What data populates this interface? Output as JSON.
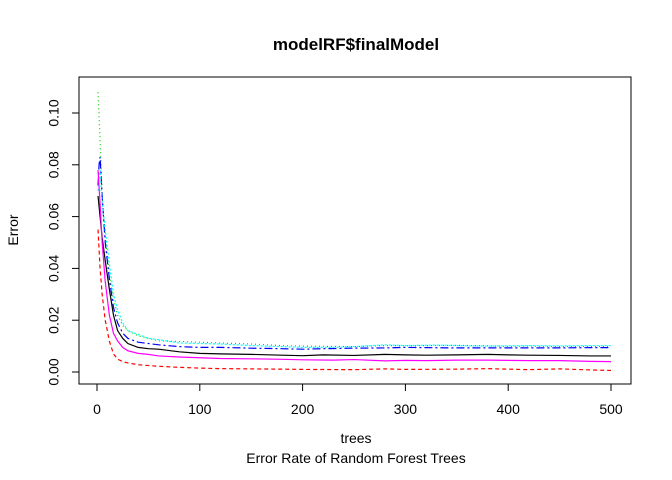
{
  "chart_data": {
    "type": "line",
    "title": "modelRF$finalModel",
    "xlabel": "trees",
    "ylabel": "Error",
    "subtitle": "Error Rate of Random Forest Trees",
    "xlim": [
      0,
      500
    ],
    "ylim": [
      0,
      0.11
    ],
    "xticks": [
      0,
      100,
      200,
      300,
      400,
      500
    ],
    "xtick_labels": [
      "0",
      "100",
      "200",
      "300",
      "400",
      "500"
    ],
    "yticks": [
      0,
      0.02,
      0.04,
      0.06,
      0.08,
      0.1
    ],
    "ytick_labels": [
      "0.00",
      "0.02",
      "0.04",
      "0.06",
      "0.08",
      "0.10"
    ],
    "grid": false,
    "legend": "none",
    "series": [
      {
        "color": "#000000",
        "dash": "",
        "points": [
          [
            1,
            0.068
          ],
          [
            3,
            0.06
          ],
          [
            5,
            0.052
          ],
          [
            8,
            0.043
          ],
          [
            12,
            0.032
          ],
          [
            16,
            0.022
          ],
          [
            20,
            0.016
          ],
          [
            25,
            0.013
          ],
          [
            30,
            0.011
          ],
          [
            40,
            0.0095
          ],
          [
            50,
            0.009
          ],
          [
            60,
            0.0088
          ],
          [
            80,
            0.0078
          ],
          [
            100,
            0.0072
          ],
          [
            120,
            0.007
          ],
          [
            150,
            0.0068
          ],
          [
            180,
            0.0065
          ],
          [
            200,
            0.0063
          ],
          [
            220,
            0.0066
          ],
          [
            250,
            0.0064
          ],
          [
            280,
            0.0068
          ],
          [
            300,
            0.0066
          ],
          [
            320,
            0.0065
          ],
          [
            350,
            0.0066
          ],
          [
            380,
            0.0068
          ],
          [
            400,
            0.0066
          ],
          [
            420,
            0.0065
          ],
          [
            450,
            0.0064
          ],
          [
            480,
            0.0062
          ],
          [
            500,
            0.0062
          ]
        ]
      },
      {
        "color": "#ff0000",
        "dash": "4,3",
        "points": [
          [
            1,
            0.055
          ],
          [
            3,
            0.04
          ],
          [
            5,
            0.03
          ],
          [
            8,
            0.02
          ],
          [
            12,
            0.012
          ],
          [
            16,
            0.007
          ],
          [
            20,
            0.005
          ],
          [
            25,
            0.004
          ],
          [
            30,
            0.0035
          ],
          [
            40,
            0.0028
          ],
          [
            50,
            0.0025
          ],
          [
            60,
            0.0022
          ],
          [
            80,
            0.0018
          ],
          [
            100,
            0.0015
          ],
          [
            120,
            0.0013
          ],
          [
            150,
            0.0012
          ],
          [
            180,
            0.0011
          ],
          [
            200,
            0.001
          ],
          [
            250,
            0.0009
          ],
          [
            280,
            0.0012
          ],
          [
            300,
            0.001
          ],
          [
            350,
            0.0011
          ],
          [
            380,
            0.0013
          ],
          [
            400,
            0.0011
          ],
          [
            420,
            0.0009
          ],
          [
            450,
            0.0012
          ],
          [
            480,
            0.0008
          ],
          [
            500,
            0.0006
          ]
        ]
      },
      {
        "color": "#00cd00",
        "dash": "1,3",
        "points": [
          [
            1,
            0.108
          ],
          [
            3,
            0.09
          ],
          [
            5,
            0.068
          ],
          [
            8,
            0.052
          ],
          [
            12,
            0.038
          ],
          [
            16,
            0.028
          ],
          [
            20,
            0.022
          ],
          [
            25,
            0.018
          ],
          [
            30,
            0.016
          ],
          [
            40,
            0.014
          ],
          [
            50,
            0.013
          ],
          [
            60,
            0.012
          ],
          [
            80,
            0.0118
          ],
          [
            100,
            0.0115
          ],
          [
            120,
            0.0112
          ],
          [
            150,
            0.0108
          ],
          [
            180,
            0.0102
          ],
          [
            200,
            0.01
          ],
          [
            250,
            0.0098
          ],
          [
            280,
            0.0102
          ],
          [
            300,
            0.0101
          ],
          [
            350,
            0.0103
          ],
          [
            380,
            0.0101
          ],
          [
            400,
            0.0099
          ],
          [
            420,
            0.01
          ],
          [
            450,
            0.0098
          ],
          [
            480,
            0.0099
          ],
          [
            500,
            0.0099
          ]
        ]
      },
      {
        "color": "#0000ff",
        "dash": "8,3,2,3",
        "points": [
          [
            1,
            0.072
          ],
          [
            2,
            0.08
          ],
          [
            3,
            0.083
          ],
          [
            5,
            0.068
          ],
          [
            8,
            0.05
          ],
          [
            12,
            0.036
          ],
          [
            16,
            0.025
          ],
          [
            20,
            0.019
          ],
          [
            25,
            0.015
          ],
          [
            30,
            0.013
          ],
          [
            40,
            0.0115
          ],
          [
            50,
            0.011
          ],
          [
            60,
            0.0105
          ],
          [
            80,
            0.0098
          ],
          [
            100,
            0.0095
          ],
          [
            120,
            0.0095
          ],
          [
            150,
            0.0092
          ],
          [
            180,
            0.009
          ],
          [
            200,
            0.0088
          ],
          [
            220,
            0.009
          ],
          [
            250,
            0.0092
          ],
          [
            280,
            0.0093
          ],
          [
            300,
            0.0095
          ],
          [
            320,
            0.0094
          ],
          [
            350,
            0.0093
          ],
          [
            380,
            0.0093
          ],
          [
            400,
            0.0093
          ],
          [
            420,
            0.0093
          ],
          [
            450,
            0.0093
          ],
          [
            480,
            0.0094
          ],
          [
            500,
            0.0094
          ]
        ]
      },
      {
        "color": "#00ffff",
        "dash": "2,2",
        "points": [
          [
            1,
            0.07
          ],
          [
            3,
            0.078
          ],
          [
            5,
            0.065
          ],
          [
            8,
            0.055
          ],
          [
            12,
            0.042
          ],
          [
            16,
            0.03
          ],
          [
            20,
            0.024
          ],
          [
            25,
            0.019
          ],
          [
            30,
            0.016
          ],
          [
            40,
            0.0145
          ],
          [
            50,
            0.013
          ],
          [
            60,
            0.0125
          ],
          [
            80,
            0.0112
          ],
          [
            100,
            0.011
          ],
          [
            120,
            0.0108
          ],
          [
            150,
            0.0102
          ],
          [
            180,
            0.0098
          ],
          [
            200,
            0.0095
          ],
          [
            230,
            0.0095
          ],
          [
            250,
            0.0098
          ],
          [
            280,
            0.0105
          ],
          [
            300,
            0.0102
          ],
          [
            330,
            0.0104
          ],
          [
            350,
            0.0102
          ],
          [
            380,
            0.01
          ],
          [
            400,
            0.0101
          ],
          [
            420,
            0.0102
          ],
          [
            450,
            0.0101
          ],
          [
            480,
            0.0102
          ],
          [
            500,
            0.0102
          ]
        ]
      },
      {
        "color": "#ff00ff",
        "dash": "",
        "points": [
          [
            1,
            0.078
          ],
          [
            3,
            0.065
          ],
          [
            5,
            0.05
          ],
          [
            8,
            0.035
          ],
          [
            12,
            0.022
          ],
          [
            16,
            0.015
          ],
          [
            20,
            0.012
          ],
          [
            25,
            0.0095
          ],
          [
            30,
            0.0082
          ],
          [
            40,
            0.0072
          ],
          [
            50,
            0.0068
          ],
          [
            60,
            0.0062
          ],
          [
            80,
            0.0058
          ],
          [
            100,
            0.0055
          ],
          [
            120,
            0.0052
          ],
          [
            150,
            0.0051
          ],
          [
            180,
            0.0049
          ],
          [
            200,
            0.0047
          ],
          [
            230,
            0.0046
          ],
          [
            250,
            0.0048
          ],
          [
            280,
            0.0043
          ],
          [
            300,
            0.0045
          ],
          [
            320,
            0.0044
          ],
          [
            350,
            0.0046
          ],
          [
            380,
            0.0046
          ],
          [
            400,
            0.0045
          ],
          [
            420,
            0.0044
          ],
          [
            450,
            0.0044
          ],
          [
            480,
            0.0041
          ],
          [
            500,
            0.004
          ]
        ]
      }
    ]
  }
}
